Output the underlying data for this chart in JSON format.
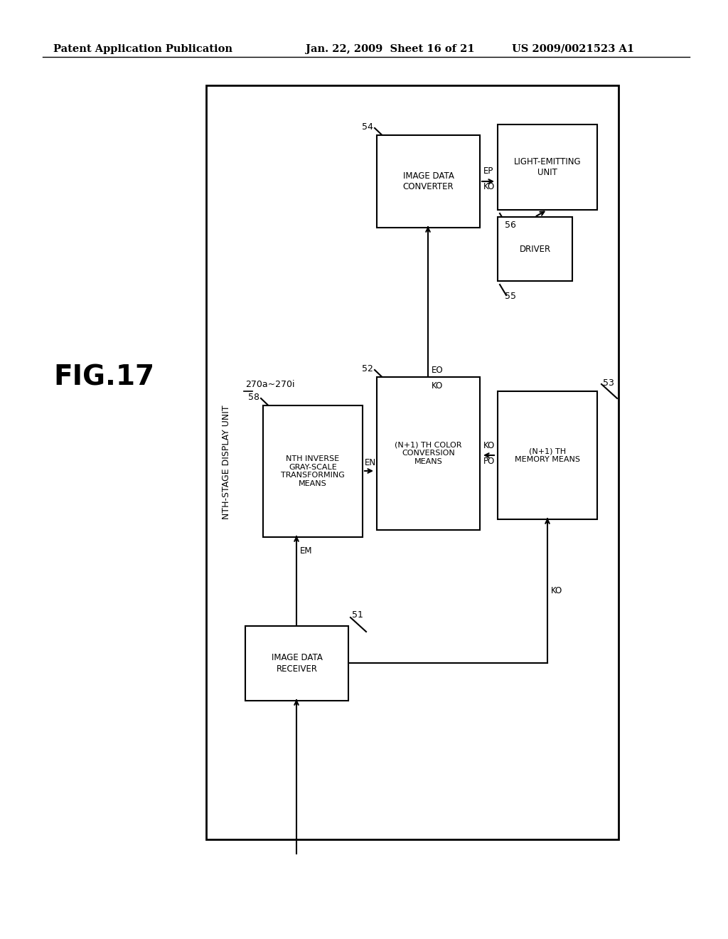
{
  "header_left": "Patent Application Publication",
  "header_center": "Jan. 22, 2009  Sheet 16 of 21",
  "header_right": "US 2009/0021523 A1",
  "fig_label": "FIG.17",
  "background": "#ffffff"
}
